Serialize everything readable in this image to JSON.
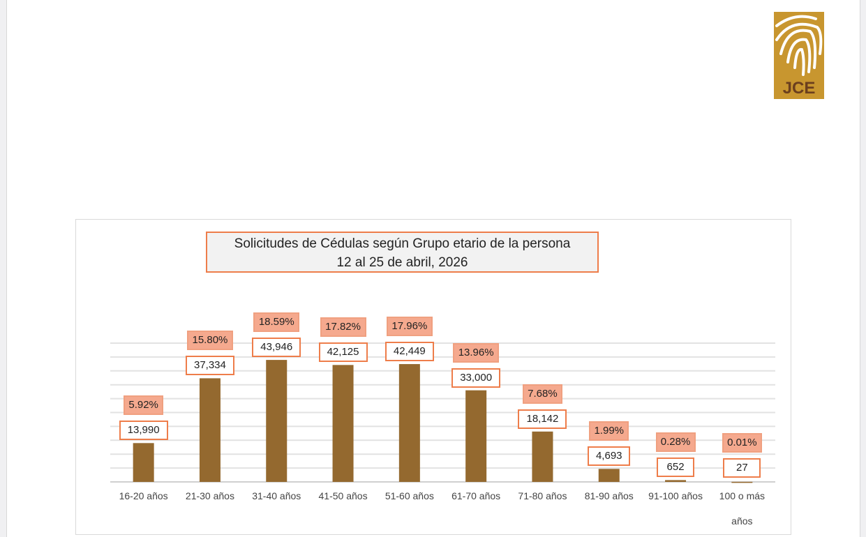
{
  "logo": {
    "text": "JCE",
    "color": "#c8962f"
  },
  "chart_data": {
    "type": "bar",
    "title": "Solicitudes de Cédulas según Grupo etario de la persona",
    "subtitle": "12 al 25 de abril, 2026",
    "categories": [
      "16-20 años",
      "21-30 años",
      "31-40 años",
      "41-50 años",
      "51-60 años",
      "61-70 años",
      "71-80 años",
      "81-90 años",
      "91-100 años",
      "100 o más años"
    ],
    "values": [
      13990,
      37334,
      43946,
      42125,
      42449,
      33000,
      18142,
      4693,
      652,
      27
    ],
    "value_labels": [
      "13,990",
      "37,334",
      "43,946",
      "42,125",
      "42,449",
      "33,000",
      "18,142",
      "4,693",
      "652",
      "27"
    ],
    "percent_labels": [
      "5.92%",
      "15.80%",
      "18.59%",
      "17.82%",
      "17.96%",
      "13.96%",
      "7.68%",
      "1.99%",
      "0.28%",
      "0.01%"
    ],
    "ylim": [
      0,
      50000
    ],
    "grid": true,
    "bar_color": "#94692f",
    "xlabel": "",
    "ylabel": ""
  }
}
